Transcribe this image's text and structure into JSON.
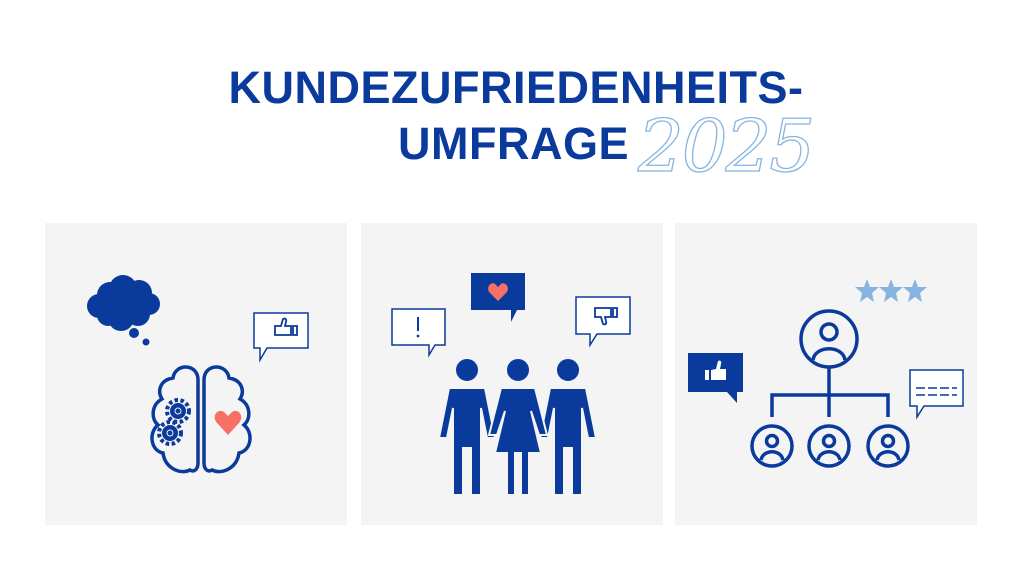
{
  "title": {
    "line1": "KUNDEZUFRIEDENHEITS-",
    "line2": "UMFRAGE",
    "year": "2025"
  },
  "colors": {
    "primary": "#0a3a9c",
    "accent_light": "#86b4e0",
    "heart": "#f77066",
    "panel_bg": "#f4f4f4"
  },
  "panels": [
    {
      "icons": [
        "thought-cloud-icon",
        "thumbs-up-bubble-icon",
        "brain-icon",
        "gears-icon",
        "heart-icon"
      ]
    },
    {
      "icons": [
        "exclamation-bubble-icon",
        "heart-bubble-icon",
        "thumbs-down-bubble-icon",
        "people-group-icon"
      ]
    },
    {
      "icons": [
        "star-rating-icon",
        "org-chart-icon",
        "thumbs-up-bubble-icon",
        "text-bubble-icon"
      ],
      "rating_stars": 3
    }
  ]
}
